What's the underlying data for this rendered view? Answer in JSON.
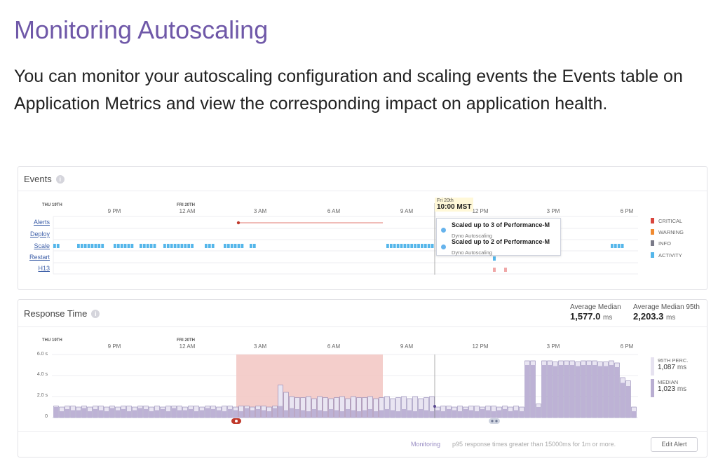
{
  "page": {
    "heading": "Monitoring Autoscaling",
    "intro": "You can monitor your autoscaling configuration and scaling events the Events table on Application Metrics and view the corresponding impact on application health."
  },
  "events_panel": {
    "title": "Events",
    "axis": {
      "day_labels": [
        "THU 19TH",
        "FRI 20TH"
      ],
      "ticks": [
        "9 PM",
        "12 AM",
        "3 AM",
        "6 AM",
        "9 AM",
        "12 PM",
        "3 PM",
        "6 PM"
      ]
    },
    "rows": [
      "Alerts",
      "Deploy",
      "Scale",
      "Restart",
      "H13"
    ],
    "legend": [
      {
        "label": "CRITICAL",
        "color": "#d9453d"
      },
      {
        "label": "WARNING",
        "color": "#f08a30"
      },
      {
        "label": "INFO",
        "color": "#7a7a88"
      },
      {
        "label": "ACTIVITY",
        "color": "#54b6ea"
      }
    ],
    "cursor": {
      "day": "Fri 20th",
      "time": "10:00 MST"
    },
    "tooltip": [
      {
        "title": "Scaled up to 3 of Performance-M",
        "subtitle": "Dyno Autoscaling"
      },
      {
        "title": "Scaled up to 2 of Performance-M",
        "subtitle": "Dyno Autoscaling"
      }
    ]
  },
  "response_panel": {
    "title": "Response Time",
    "stats": [
      {
        "label": "Average Median",
        "value": "1,577.0",
        "unit": "ms"
      },
      {
        "label": "Average Median 95th",
        "value": "2,203.3",
        "unit": "ms"
      }
    ],
    "y_ticks": [
      "6.0 s",
      "4.0 s",
      "2.0 s",
      "0"
    ],
    "legend": [
      {
        "label": "95TH PERC.",
        "value": "1,087",
        "unit": "ms",
        "color": "#e6e2f0"
      },
      {
        "label": "MEDIAN",
        "value": "1,023",
        "unit": "ms",
        "color": "#b9aed2"
      }
    ],
    "footer": {
      "monitoring_label": "Monitoring",
      "monitoring_text": "p95 response times greater than 15000ms for 1m or more.",
      "button": "Edit Alert"
    }
  },
  "chart_data": {
    "type": "bar",
    "title": "Response Time",
    "ylim": [
      0,
      6.0
    ],
    "yunit": "s",
    "series": [
      {
        "name": "95TH PERC.",
        "values": [
          1.1,
          1.0,
          1.1,
          1.1,
          1.0,
          1.1,
          1.0,
          1.1,
          1.1,
          1.0,
          1.1,
          1.0,
          1.1,
          1.1,
          1.0,
          1.1,
          1.1,
          1.0,
          1.1,
          1.0,
          1.1,
          1.1,
          1.1,
          1.0,
          1.1,
          1.1,
          1.0,
          1.1,
          1.1,
          1.0,
          1.1,
          1.1,
          1.0,
          1.1,
          1.1,
          1.0,
          1.1,
          1.1,
          1.0,
          1.1,
          3.1,
          2.4,
          2.0,
          1.9,
          1.9,
          2.0,
          1.8,
          2.0,
          1.9,
          1.8,
          1.9,
          2.0,
          1.8,
          2.0,
          1.9,
          1.9,
          2.0,
          1.8,
          1.9,
          2.0,
          1.8,
          1.9,
          2.0,
          1.8,
          2.0,
          1.8,
          1.9,
          2.0,
          1.0,
          1.1,
          1.1,
          1.0,
          1.1,
          1.0,
          1.1,
          1.1,
          1.0,
          1.1,
          1.1,
          1.0,
          1.1,
          1.0,
          1.1,
          1.0,
          5.4,
          5.4,
          1.3,
          5.4,
          5.4,
          5.3,
          5.4,
          5.4,
          5.4,
          5.3,
          5.4,
          5.4,
          5.4,
          5.3,
          5.3,
          5.4,
          5.2,
          3.8,
          3.5,
          1.0
        ]
      },
      {
        "name": "MEDIAN",
        "values": [
          1.0,
          0.6,
          0.8,
          0.7,
          0.7,
          0.9,
          0.6,
          0.8,
          0.7,
          0.6,
          0.9,
          0.7,
          0.8,
          0.6,
          0.7,
          0.9,
          0.8,
          0.6,
          0.7,
          0.8,
          0.6,
          0.9,
          0.7,
          0.7,
          0.8,
          0.6,
          0.7,
          0.9,
          0.8,
          0.7,
          0.6,
          0.8,
          0.7,
          0.6,
          0.9,
          0.7,
          0.8,
          0.7,
          0.6,
          0.9,
          1.1,
          0.7,
          0.9,
          0.8,
          0.7,
          0.6,
          0.8,
          0.7,
          0.6,
          0.8,
          0.7,
          0.6,
          0.8,
          0.7,
          0.6,
          0.7,
          0.8,
          0.6,
          0.7,
          0.8,
          0.7,
          0.6,
          0.8,
          0.7,
          0.6,
          0.8,
          0.7,
          0.6,
          0.7,
          0.6,
          0.8,
          0.7,
          0.6,
          0.8,
          0.7,
          0.6,
          0.8,
          0.7,
          0.6,
          0.7,
          0.8,
          0.6,
          0.7,
          0.6,
          5.0,
          5.0,
          1.0,
          5.0,
          5.0,
          4.9,
          5.0,
          5.0,
          5.0,
          4.9,
          5.0,
          5.0,
          5.0,
          4.9,
          4.9,
          5.0,
          4.8,
          3.3,
          3.0,
          0.6
        ]
      }
    ]
  }
}
